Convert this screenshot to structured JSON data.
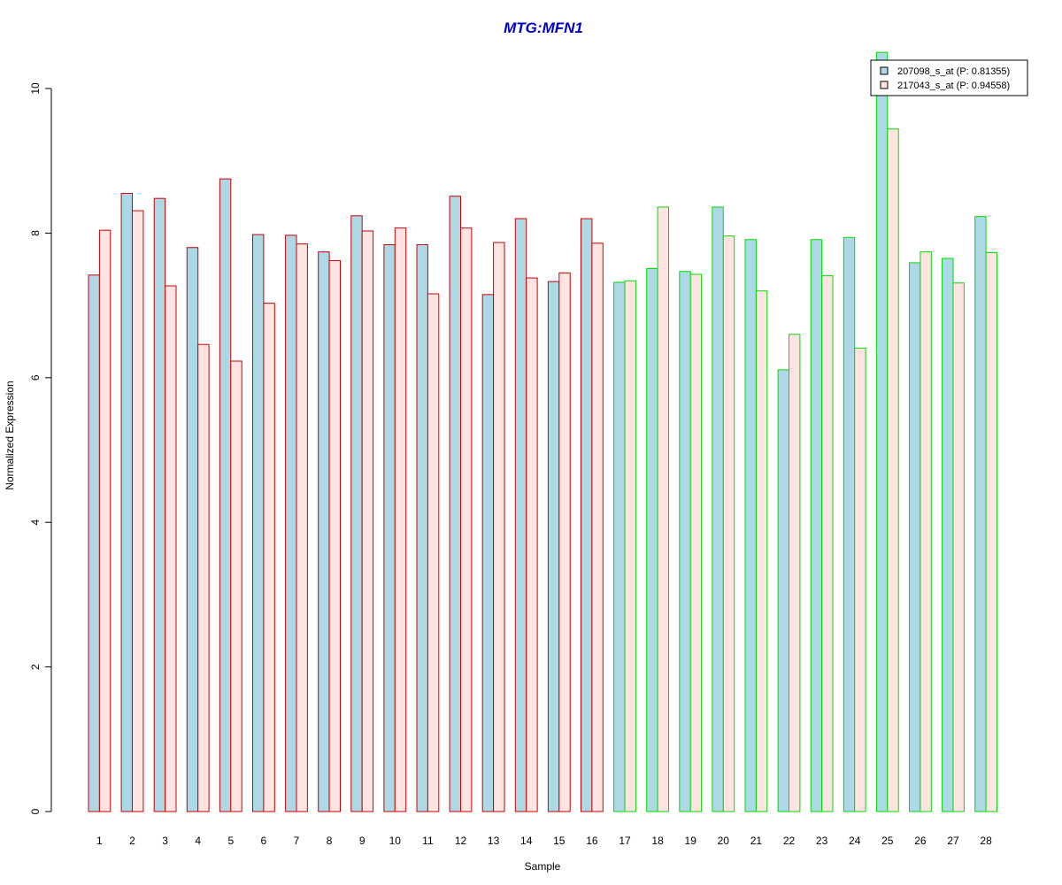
{
  "chart_data": {
    "type": "bar",
    "title": "MTG:MFN1",
    "xlabel": "Sample",
    "ylabel": "Normalized Expression",
    "ylim": [
      0,
      10
    ],
    "yticks": [
      0,
      2,
      4,
      6,
      8,
      10
    ],
    "grid": false,
    "legend_position": "top-right",
    "categories": [
      "1",
      "2",
      "3",
      "4",
      "5",
      "6",
      "7",
      "8",
      "9",
      "10",
      "11",
      "12",
      "13",
      "14",
      "15",
      "16",
      "17",
      "18",
      "19",
      "20",
      "21",
      "22",
      "23",
      "24",
      "25",
      "26",
      "27",
      "28"
    ],
    "series": [
      {
        "name": "207098_s_at (P: 0.81355)",
        "fill_color": "#add8e6",
        "values": [
          7.42,
          8.55,
          8.48,
          7.8,
          8.75,
          7.98,
          7.97,
          7.74,
          8.24,
          7.84,
          7.84,
          8.51,
          7.15,
          8.2,
          7.33,
          8.2,
          7.32,
          7.51,
          7.47,
          8.36,
          7.91,
          6.11,
          7.91,
          7.94,
          10.5,
          7.59,
          7.65,
          8.23
        ]
      },
      {
        "name": "217043_s_at (P: 0.94558)",
        "fill_color": "#ffe4e1",
        "values": [
          8.04,
          8.31,
          7.27,
          6.46,
          6.23,
          7.03,
          7.85,
          7.62,
          8.03,
          8.07,
          7.16,
          8.07,
          7.87,
          7.38,
          7.45,
          7.86,
          7.34,
          8.36,
          7.43,
          7.96,
          7.2,
          6.6,
          7.41,
          6.41,
          9.44,
          7.74,
          7.31,
          7.73
        ]
      }
    ],
    "group_border_colors": [
      "#cc0000",
      "#cc0000",
      "#cc0000",
      "#cc0000",
      "#cc0000",
      "#cc0000",
      "#cc0000",
      "#cc0000",
      "#cc0000",
      "#cc0000",
      "#cc0000",
      "#cc0000",
      "#cc0000",
      "#cc0000",
      "#cc0000",
      "#cc0000",
      "#00dd00",
      "#00dd00",
      "#00dd00",
      "#00dd00",
      "#00dd00",
      "#00dd00",
      "#00dd00",
      "#00dd00",
      "#00dd00",
      "#00dd00",
      "#00dd00",
      "#00dd00"
    ],
    "title_color": "#0000cc"
  }
}
